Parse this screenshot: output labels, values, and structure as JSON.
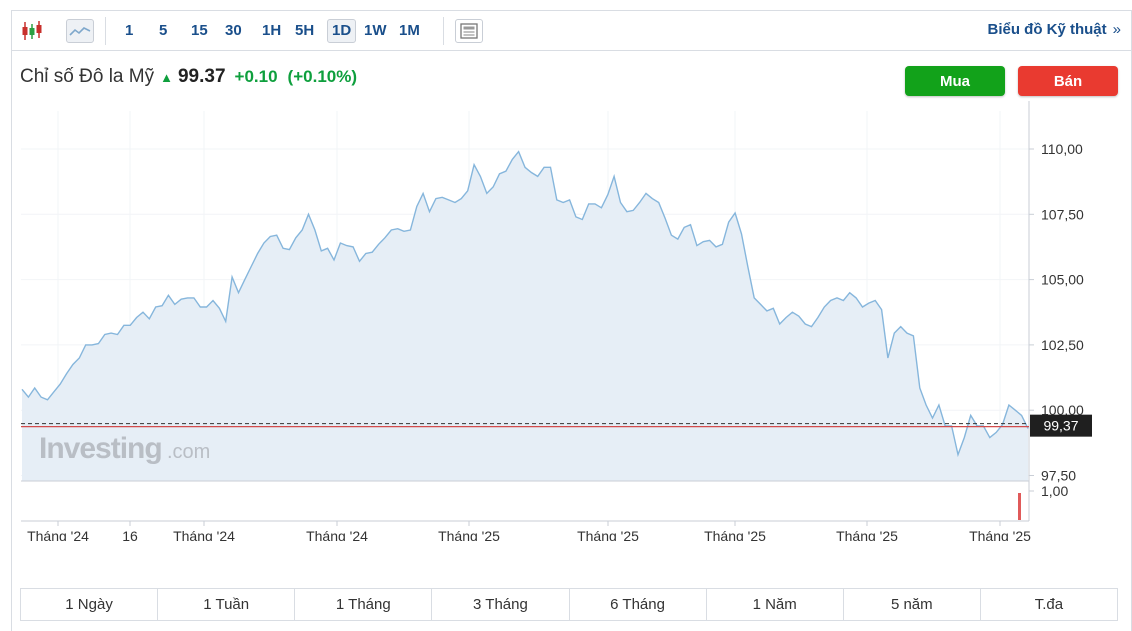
{
  "toolbar": {
    "timeframes": [
      "1",
      "5",
      "15",
      "30",
      "1H",
      "5H",
      "1D",
      "1W",
      "1M"
    ],
    "active_timeframe": "1D",
    "tech_link": "Biểu đồ Kỹ thuật",
    "tech_link_chevron": "»",
    "icons": [
      "candlestick-icon",
      "area-chart-icon",
      "news-icon"
    ]
  },
  "instrument": {
    "name": "Chỉ số Đô la Mỹ",
    "price": "99.37",
    "change": "+0.10",
    "change_pct": "(+0.10%)",
    "direction_color": "#0e9f3d"
  },
  "actions": {
    "buy": "Mua",
    "sell": "Bán"
  },
  "watermark": {
    "brand": "Investing",
    "suffix": ".com"
  },
  "ranges": [
    "1 Ngày",
    "1 Tuần",
    "1 Tháng",
    "3 Tháng",
    "6 Tháng",
    "1 Năm",
    "5 năm",
    "T.đa"
  ],
  "chart_data": {
    "type": "area",
    "y_ticks": [
      "110,00",
      "107,50",
      "105,00",
      "102,50",
      "100,00",
      "97,50"
    ],
    "y_tick_values": [
      110,
      107.5,
      105,
      102.5,
      100,
      97.5
    ],
    "ylim": [
      97.0,
      111.0
    ],
    "current_label": "99,37",
    "current_value": 99.37,
    "x_tick_labels": [
      "Tháng '24",
      "16",
      "Tháng '24",
      "Tháng '24",
      "Tháng '25",
      "Tháng '25",
      "Tháng '25",
      "Tháng '25",
      "Tháng '25"
    ],
    "volume_tick": "1,00",
    "series": [
      {
        "values": [
          100.8,
          100.5,
          100.85,
          100.5,
          100.4,
          100.7,
          101.0,
          101.4,
          101.75,
          102.0,
          102.5,
          102.5,
          102.55,
          102.9,
          102.95,
          102.9,
          103.25,
          103.25,
          103.55,
          103.75,
          103.5,
          103.95,
          104.0,
          104.4,
          104.05,
          104.25,
          104.3,
          104.3,
          103.95,
          103.95,
          104.2,
          103.9,
          103.4,
          105.1,
          104.5,
          105.0,
          105.5,
          106.0,
          106.4,
          106.65,
          106.7,
          106.2,
          106.15,
          106.6,
          106.9,
          107.5,
          106.9,
          106.1,
          106.2,
          105.75,
          106.4,
          106.3,
          106.25,
          105.7,
          106.0,
          106.05,
          106.35,
          106.6,
          106.9,
          106.95,
          106.85,
          106.9,
          107.8,
          108.3,
          107.6,
          108.1,
          108.15,
          108.05,
          107.95,
          108.1,
          108.4,
          109.4,
          108.95,
          108.3,
          108.55,
          109.05,
          109.15,
          109.6,
          109.9,
          109.3,
          109.1,
          108.95,
          109.3,
          109.3,
          108.05,
          107.95,
          108.05,
          107.4,
          107.3,
          107.9,
          107.9,
          107.75,
          108.25,
          108.95,
          107.95,
          107.6,
          107.65,
          107.95,
          108.3,
          108.1,
          107.95,
          107.35,
          106.7,
          106.55,
          107.0,
          107.1,
          106.3,
          106.45,
          106.5,
          106.25,
          106.35,
          107.2,
          107.55,
          106.75,
          105.5,
          104.3,
          104.05,
          103.8,
          103.9,
          103.3,
          103.55,
          103.75,
          103.6,
          103.3,
          103.2,
          103.55,
          103.95,
          104.2,
          104.3,
          104.2,
          104.5,
          104.3,
          103.95,
          104.1,
          104.2,
          103.85,
          102.0,
          102.95,
          103.2,
          102.95,
          102.85,
          100.85,
          100.2,
          99.7,
          100.2,
          99.4,
          99.4,
          98.3,
          98.95,
          99.8,
          99.4,
          99.4,
          98.95,
          99.15,
          99.45,
          100.2,
          100.0,
          99.8,
          99.3
        ]
      }
    ],
    "colors": {
      "line": "#86b6dc",
      "fill": "#e6eef6",
      "current_line": "#d24b4b",
      "volume_bar": "#e05a5a"
    }
  }
}
